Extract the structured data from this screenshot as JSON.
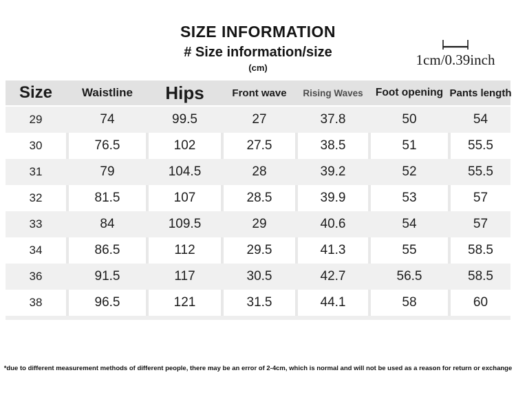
{
  "header": {
    "title": "SIZE INFORMATION",
    "subtitle": "# Size information/size",
    "unit": "(cm)",
    "scale_label": "1cm/0.39inch"
  },
  "size_table": {
    "columns": [
      "Size",
      "Waistline",
      "Hips",
      "Front wave",
      "Rising Waves",
      "Foot opening",
      "Pants length"
    ],
    "column_keys": [
      "size",
      "waistline",
      "hips",
      "front-wave",
      "rising-waves",
      "foot-opening",
      "pants-length"
    ],
    "rows": [
      [
        "29",
        "74",
        "99.5",
        "27",
        "37.8",
        "50",
        "54"
      ],
      [
        "30",
        "76.5",
        "102",
        "27.5",
        "38.5",
        "51",
        "55.5"
      ],
      [
        "31",
        "79",
        "104.5",
        "28",
        "39.2",
        "52",
        "55.5"
      ],
      [
        "32",
        "81.5",
        "107",
        "28.5",
        "39.9",
        "53",
        "57"
      ],
      [
        "33",
        "84",
        "109.5",
        "29",
        "40.6",
        "54",
        "57"
      ],
      [
        "34",
        "86.5",
        "112",
        "29.5",
        "41.3",
        "55",
        "58.5"
      ],
      [
        "36",
        "91.5",
        "117",
        "30.5",
        "42.7",
        "56.5",
        "58.5"
      ],
      [
        "38",
        "96.5",
        "121",
        "31.5",
        "44.1",
        "58",
        "60"
      ]
    ]
  },
  "footer": {
    "disclaimer": "*due to different measurement methods of different people, there may be an error of 2-4cm, which is normal and will not be used as a reason for return or exchange"
  },
  "icons": {
    "ruler": "cm-scale-ruler-icon"
  },
  "colors": {
    "header_bg": "#e2e2e2",
    "row_alt_bg": "#f0f0f0",
    "cell_gap": "#e8e8e8",
    "muted_header": "#4d4d4d",
    "text_primary": "#1a1a1a"
  }
}
